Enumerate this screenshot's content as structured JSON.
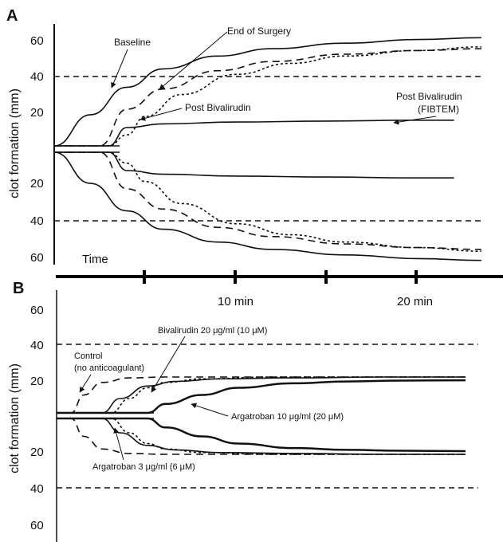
{
  "chart_data": [
    {
      "panel": "A",
      "type": "line",
      "ylabel": "clot formation (mm)",
      "xlabel": "Time",
      "yticks_upper": [
        "60",
        "40",
        "20"
      ],
      "yticks_lower": [
        "20",
        "40",
        "60"
      ],
      "reference_lines_mm": [
        40,
        -40
      ],
      "x_unit": "min",
      "series": [
        {
          "name": "Baseline",
          "style": "solid",
          "x": [
            0,
            2,
            4,
            6,
            9,
            12,
            16,
            20,
            23.5
          ],
          "y": [
            0,
            17,
            32,
            42,
            49,
            53,
            56,
            58,
            59
          ]
        },
        {
          "name": "End of Surgery",
          "style": "long-dash",
          "x": [
            0,
            2.5,
            4,
            6,
            9,
            12,
            16,
            20,
            23.5
          ],
          "y": [
            0,
            0,
            20,
            31,
            41,
            46,
            50,
            52,
            53
          ]
        },
        {
          "name": "Post Bivalirudin",
          "style": "short-dash",
          "x": [
            0,
            3,
            4,
            5,
            7,
            10,
            13,
            16,
            20,
            23.5
          ],
          "y": [
            0,
            0,
            6,
            16,
            28,
            39,
            45,
            49,
            52,
            54
          ]
        },
        {
          "name": "Post Bivalirudin (FIBTEM)",
          "style": "solid",
          "x": [
            0,
            3,
            4,
            6,
            10,
            15,
            20,
            22
          ],
          "y": [
            0,
            0,
            10,
            12,
            13,
            13.5,
            14,
            14
          ]
        }
      ],
      "annotations": [
        "Baseline",
        "End of Surgery",
        "Post Bivalirudin",
        "Post Bivalirudin",
        "(FIBTEM)"
      ]
    },
    {
      "panel": "B",
      "type": "line",
      "ylabel": "clot formation (mm)",
      "yticks_upper": [
        "60",
        "40",
        "20"
      ],
      "yticks_lower": [
        "20",
        "40",
        "60"
      ],
      "reference_lines_mm": [
        40,
        -40
      ],
      "x_unit": "min",
      "series": [
        {
          "name": "Control (no anticoagulant)",
          "style": "long-dash",
          "x": [
            0,
            0.8,
            1.5,
            2.5,
            4,
            6,
            10,
            16,
            22.5
          ],
          "y": [
            0,
            0,
            10,
            17,
            19.5,
            20,
            20,
            20,
            20
          ]
        },
        {
          "name": "Bivalirudin 20 μg/ml (10 μM)",
          "style": "short-dash",
          "x": [
            0,
            3,
            4,
            5,
            6,
            8,
            12,
            16,
            22.5
          ],
          "y": [
            0,
            0,
            8,
            14,
            17,
            19,
            20,
            20,
            20
          ]
        },
        {
          "name": "Argatroban 3 μg/ml (6 μM)",
          "style": "solid",
          "x": [
            0,
            2.5,
            3.5,
            5,
            6.5,
            9,
            13,
            18,
            22.5
          ],
          "y": [
            0,
            0,
            8,
            15,
            17.5,
            19,
            19.5,
            20,
            20
          ]
        },
        {
          "name": "Argatroban 10 μg/ml (20 μM)",
          "style": "solid-thick",
          "x": [
            0,
            5,
            6,
            8,
            10,
            13,
            16,
            19,
            22.5
          ],
          "y": [
            0,
            0,
            5,
            10,
            14,
            16.5,
            17.5,
            18,
            18.2
          ]
        }
      ],
      "annotations": [
        "Control",
        "(no anticoagulant)",
        "Bivalirudin 20 μg/ml (10 μM)",
        "Argatroban 10 μg/ml (20 μM)",
        "Argatroban 3 μg/ml (6 μM)"
      ]
    }
  ],
  "panels": {
    "a": {
      "letter": "A",
      "ylabel": "clot formation (mm)",
      "ticks": [
        "60",
        "40",
        "20",
        "20",
        "40",
        "60"
      ],
      "time_label": "Time",
      "labels": {
        "baseline": "Baseline",
        "end_of_surgery": "End of Surgery",
        "post_bivalirudin": "Post Bivalirudin",
        "fibtem_1": "Post Bivalirudin",
        "fibtem_2": "(FIBTEM)"
      }
    },
    "b": {
      "letter": "B",
      "ylabel": "clot formation (mm)",
      "ticks": [
        "60",
        "40",
        "20",
        "20",
        "40",
        "60"
      ],
      "labels": {
        "control_1": "Control",
        "control_2": "(no anticoagulant)",
        "bivalirudin": "Bivalirudin 20 μg/ml (10 μM)",
        "argatroban10": "Argatroban 10 μg/ml (20 μM)",
        "argatroban3": "Argatroban 3 μg/ml (6 μM)"
      }
    }
  },
  "time_axis": {
    "label_10": "10 min",
    "label_20": "20 min"
  }
}
